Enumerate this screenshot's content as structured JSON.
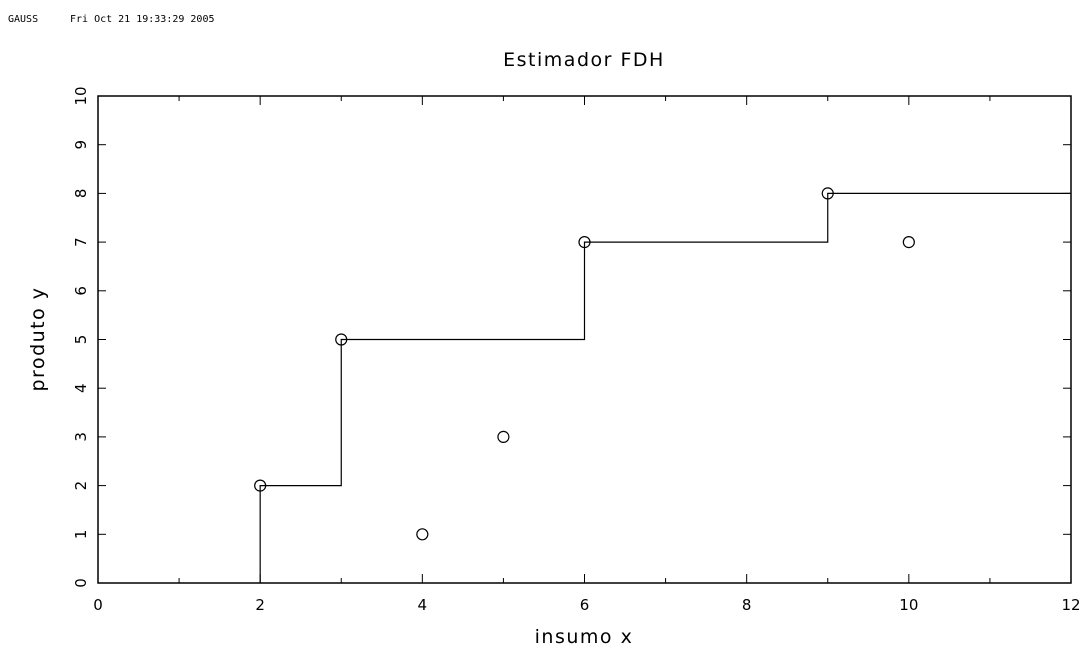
{
  "header": {
    "program": "GAUSS",
    "timestamp": "Fri Oct 21 19:33:29 2005"
  },
  "chart_data": {
    "type": "scatter",
    "title": "Estimador FDH",
    "xlabel": "insumo x",
    "ylabel": "produto y",
    "xlim": [
      0,
      12
    ],
    "ylim": [
      0,
      10
    ],
    "x_ticks": [
      "0",
      "2",
      "4",
      "6",
      "8",
      "10",
      "12"
    ],
    "y_ticks": [
      "0",
      "1",
      "2",
      "3",
      "4",
      "5",
      "6",
      "7",
      "8",
      "9",
      "10"
    ],
    "grid": false,
    "points": [
      {
        "x": 2,
        "y": 2
      },
      {
        "x": 3,
        "y": 5
      },
      {
        "x": 4,
        "y": 1
      },
      {
        "x": 5,
        "y": 3
      },
      {
        "x": 6,
        "y": 7
      },
      {
        "x": 9,
        "y": 8
      },
      {
        "x": 10,
        "y": 7
      }
    ],
    "frontier": [
      {
        "x": 2,
        "y": 0
      },
      {
        "x": 2,
        "y": 2
      },
      {
        "x": 3,
        "y": 2
      },
      {
        "x": 3,
        "y": 5
      },
      {
        "x": 6,
        "y": 5
      },
      {
        "x": 6,
        "y": 7
      },
      {
        "x": 9,
        "y": 7
      },
      {
        "x": 9,
        "y": 8
      },
      {
        "x": 12,
        "y": 8
      }
    ],
    "colors": {
      "ink": "#000000",
      "background": "#ffffff"
    }
  }
}
